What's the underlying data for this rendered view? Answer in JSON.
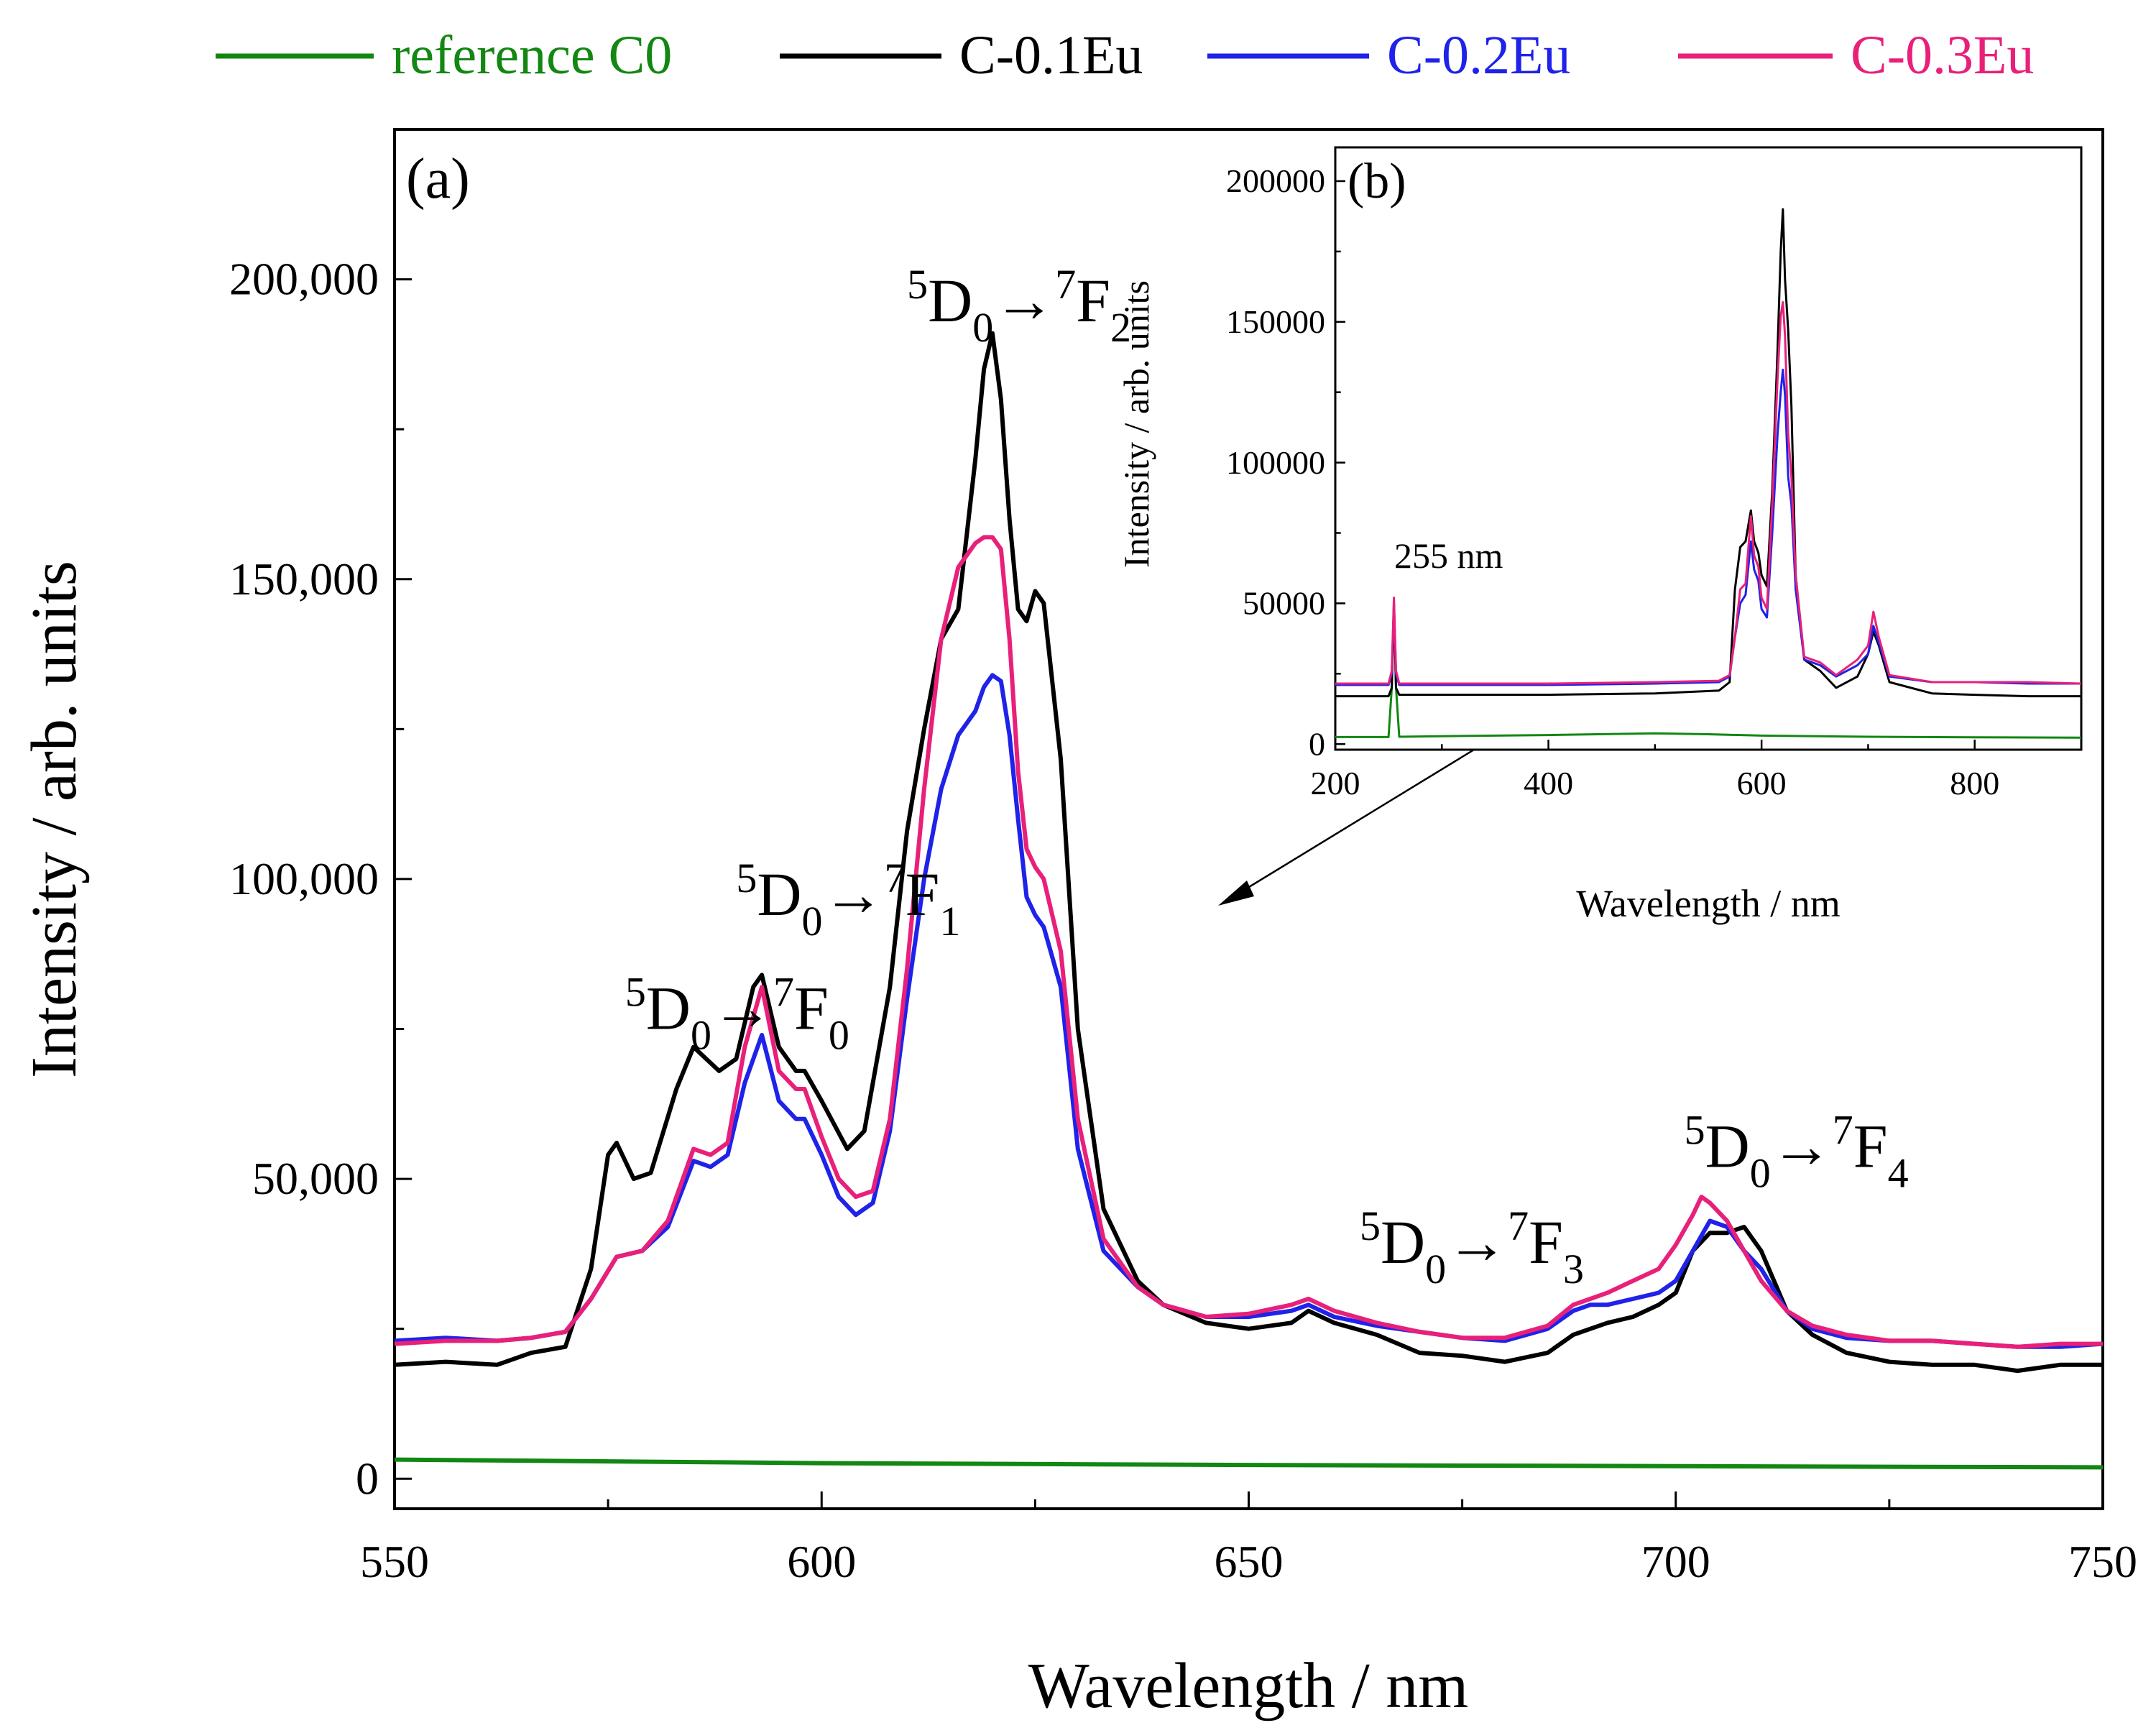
{
  "chart_data": [
    {
      "panel": "main",
      "panel_label": "(a)",
      "type": "line",
      "xlabel": "Wavelength / nm",
      "ylabel": "Intensity / arb. units",
      "xlim": [
        550,
        750
      ],
      "ylim": [
        -5000,
        225000
      ],
      "xticks": [
        550,
        600,
        650,
        700,
        750
      ],
      "yticks": [
        0,
        50000,
        100000,
        150000,
        200000
      ],
      "ytick_labels": [
        "0",
        "50,000",
        "100,000",
        "150,000",
        "200,000"
      ],
      "annotations": [
        {
          "text": "5D0→7F0",
          "sup1": "5",
          "main1": "D",
          "sub1": "0",
          "arrow": "→",
          "sup2": "7",
          "main2": "F",
          "sub2": "0",
          "x": 577,
          "y": 75000
        },
        {
          "text": "5D0→7F1",
          "sup1": "5",
          "main1": "D",
          "sub1": "0",
          "arrow": "→",
          "sup2": "7",
          "main2": "F",
          "sub2": "1",
          "x": 590,
          "y": 94000
        },
        {
          "text": "5D0→7F2",
          "sup1": "5",
          "main1": "D",
          "sub1": "0",
          "arrow": "→",
          "sup2": "7",
          "main2": "F",
          "sub2": "2",
          "x": 610,
          "y": 193000
        },
        {
          "text": "5D0→7F3",
          "sup1": "5",
          "main1": "D",
          "sub1": "0",
          "arrow": "→",
          "sup2": "7",
          "main2": "F",
          "sub2": "3",
          "x": 663,
          "y": 36000
        },
        {
          "text": "5D0→7F4",
          "sup1": "5",
          "main1": "D",
          "sub1": "0",
          "arrow": "→",
          "sup2": "7",
          "main2": "F",
          "sub2": "4",
          "x": 701,
          "y": 52000
        }
      ],
      "series": [
        {
          "name": "reference C0",
          "color": "#128712",
          "x": [
            550,
            600,
            650,
            700,
            750
          ],
          "y": [
            3200,
            2600,
            2300,
            2100,
            1900
          ]
        },
        {
          "name": "C-0.1Eu",
          "color": "#000000",
          "x": [
            550,
            556,
            562,
            566,
            570,
            573,
            575,
            576,
            578,
            580,
            583,
            585,
            588,
            590,
            592,
            593,
            595,
            597,
            598,
            600,
            603,
            605,
            608,
            610,
            612,
            614,
            616,
            618,
            619,
            620,
            621,
            622,
            623,
            624,
            625,
            626,
            628,
            630,
            633,
            637,
            640,
            645,
            650,
            655,
            657,
            660,
            665,
            670,
            675,
            680,
            685,
            688,
            690,
            692,
            695,
            698,
            700,
            702,
            704,
            706,
            708,
            710,
            713,
            716,
            720,
            725,
            730,
            735,
            740,
            745,
            750
          ],
          "y": [
            19000,
            19500,
            19000,
            21000,
            22000,
            35000,
            54000,
            56000,
            50000,
            51000,
            65000,
            72000,
            68000,
            70000,
            82000,
            84000,
            72000,
            68000,
            68000,
            63000,
            55000,
            58000,
            82000,
            108000,
            125000,
            140000,
            145000,
            170000,
            185000,
            191000,
            180000,
            160000,
            145000,
            143000,
            148000,
            146000,
            120000,
            75000,
            45000,
            33000,
            29000,
            26000,
            25000,
            26000,
            28000,
            26000,
            24000,
            21000,
            20500,
            19500,
            21000,
            24000,
            25000,
            26000,
            27000,
            29000,
            31000,
            38000,
            41000,
            41000,
            42000,
            38000,
            28000,
            24000,
            21000,
            19500,
            19000,
            19000,
            18000,
            19000,
            19000
          ]
        },
        {
          "name": "C-0.2Eu",
          "color": "#1f22e8",
          "x": [
            550,
            556,
            562,
            566,
            570,
            573,
            576,
            579,
            582,
            585,
            587,
            589,
            591,
            593,
            595,
            597,
            598,
            600,
            602,
            604,
            606,
            608,
            610,
            612,
            614,
            616,
            618,
            619,
            620,
            621,
            622,
            623,
            624,
            625,
            626,
            628,
            630,
            633,
            637,
            640,
            645,
            650,
            655,
            657,
            660,
            665,
            670,
            675,
            680,
            685,
            688,
            690,
            692,
            695,
            698,
            700,
            702,
            704,
            706,
            708,
            710,
            713,
            716,
            720,
            725,
            730,
            735,
            740,
            745,
            750
          ],
          "y": [
            23000,
            23500,
            23000,
            23500,
            24500,
            30000,
            37000,
            38000,
            42000,
            53000,
            52000,
            54000,
            66000,
            74000,
            63000,
            60000,
            60000,
            54000,
            47000,
            44000,
            46000,
            58000,
            80000,
            100000,
            115000,
            124000,
            128000,
            132000,
            134000,
            133000,
            124000,
            110000,
            97000,
            94000,
            92000,
            82000,
            55000,
            38000,
            32000,
            29000,
            27000,
            27000,
            28000,
            29000,
            27000,
            25500,
            24500,
            23500,
            23000,
            25000,
            28000,
            29000,
            29000,
            30000,
            31000,
            33000,
            38000,
            43000,
            42000,
            38000,
            35000,
            28000,
            25000,
            23500,
            23000,
            23000,
            22500,
            22000,
            22000,
            22500
          ]
        },
        {
          "name": "C-0.3Eu",
          "color": "#e8207a",
          "x": [
            550,
            556,
            562,
            566,
            570,
            573,
            576,
            579,
            582,
            585,
            587,
            589,
            591,
            593,
            595,
            597,
            598,
            600,
            602,
            604,
            606,
            608,
            610,
            612,
            614,
            616,
            618,
            619,
            620,
            621,
            622,
            623,
            624,
            625,
            626,
            628,
            630,
            633,
            637,
            640,
            645,
            650,
            655,
            657,
            660,
            665,
            670,
            675,
            680,
            685,
            688,
            690,
            692,
            695,
            698,
            700,
            702,
            703,
            704,
            706,
            708,
            710,
            713,
            716,
            720,
            725,
            730,
            735,
            740,
            745,
            750
          ],
          "y": [
            22500,
            23000,
            23000,
            23500,
            24500,
            30000,
            37000,
            38000,
            43000,
            55000,
            54000,
            56000,
            72000,
            82000,
            68000,
            65000,
            65000,
            57000,
            50000,
            47000,
            48000,
            60000,
            85000,
            115000,
            140000,
            152000,
            156000,
            157000,
            157000,
            155000,
            140000,
            118000,
            105000,
            102000,
            100000,
            88000,
            60000,
            40000,
            32000,
            29000,
            27000,
            27500,
            29000,
            30000,
            28000,
            26000,
            24500,
            23500,
            23500,
            25500,
            29000,
            30000,
            31000,
            33000,
            35000,
            39000,
            44000,
            47000,
            46000,
            43000,
            38000,
            33000,
            28000,
            25500,
            24000,
            23000,
            23000,
            22500,
            22000,
            22500,
            22500
          ]
        }
      ]
    },
    {
      "panel": "inset",
      "panel_label": "(b)",
      "type": "line",
      "xlabel": "Wavelength / nm",
      "ylabel": "Intensity / arb. units",
      "xlim": [
        200,
        900
      ],
      "ylim": [
        -2000,
        212000
      ],
      "xticks": [
        200,
        400,
        600,
        800
      ],
      "yticks": [
        0,
        50000,
        100000,
        150000,
        200000
      ],
      "ytick_labels": [
        "0",
        "50000",
        "100000",
        "150000",
        "200000"
      ],
      "annotation": "255 nm",
      "series": [
        {
          "name": "reference C0",
          "color": "#128712",
          "x": [
            200,
            250,
            253,
            255,
            257,
            260,
            300,
            400,
            500,
            550,
            600,
            700,
            800,
            900
          ],
          "y": [
            2500,
            2500,
            20000,
            50000,
            20000,
            2600,
            2800,
            3200,
            3800,
            3500,
            3000,
            2600,
            2400,
            2300
          ]
        },
        {
          "name": "C-0.1Eu",
          "color": "#000000",
          "x": [
            200,
            250,
            253,
            255,
            257,
            260,
            300,
            400,
            500,
            560,
            570,
            575,
            580,
            585,
            590,
            593,
            597,
            600,
            605,
            610,
            615,
            618,
            620,
            622,
            625,
            628,
            632,
            640,
            655,
            670,
            690,
            700,
            705,
            710,
            720,
            760,
            800,
            850,
            900
          ],
          "y": [
            17000,
            17000,
            20000,
            50000,
            20000,
            17500,
            17500,
            17500,
            18000,
            19000,
            22000,
            55000,
            70000,
            72000,
            83000,
            72000,
            68000,
            60000,
            56000,
            90000,
            140000,
            175000,
            190000,
            165000,
            147000,
            120000,
            60000,
            30000,
            26000,
            20000,
            24000,
            32000,
            40000,
            35000,
            22000,
            18000,
            17500,
            17000,
            17000
          ]
        },
        {
          "name": "C-0.2Eu",
          "color": "#1f22e8",
          "x": [
            200,
            250,
            253,
            255,
            257,
            260,
            300,
            400,
            500,
            560,
            570,
            575,
            580,
            585,
            590,
            593,
            597,
            600,
            605,
            610,
            615,
            618,
            620,
            622,
            625,
            628,
            632,
            640,
            655,
            670,
            690,
            700,
            705,
            710,
            720,
            760,
            800,
            850,
            900
          ],
          "y": [
            21000,
            21000,
            25000,
            50000,
            25000,
            21000,
            21000,
            21000,
            21500,
            22000,
            24000,
            38000,
            50000,
            53000,
            72000,
            62000,
            58000,
            48000,
            45000,
            75000,
            110000,
            125000,
            133000,
            124000,
            95000,
            85000,
            55000,
            30000,
            28000,
            24000,
            28000,
            32000,
            42000,
            36000,
            24000,
            22000,
            22000,
            21500,
            21500
          ]
        },
        {
          "name": "C-0.3Eu",
          "color": "#e8207a",
          "x": [
            200,
            250,
            253,
            255,
            257,
            260,
            300,
            400,
            500,
            560,
            570,
            575,
            580,
            585,
            590,
            593,
            597,
            600,
            605,
            610,
            615,
            618,
            620,
            622,
            625,
            628,
            632,
            640,
            655,
            670,
            690,
            700,
            705,
            710,
            720,
            760,
            800,
            850,
            900
          ],
          "y": [
            21500,
            21500,
            26000,
            52000,
            26000,
            21500,
            21500,
            21500,
            22000,
            22500,
            24500,
            38000,
            55000,
            57000,
            81000,
            67000,
            63000,
            52000,
            48000,
            85000,
            130000,
            152000,
            157000,
            145000,
            110000,
            95000,
            60000,
            31000,
            29000,
            24500,
            30000,
            35000,
            47000,
            38000,
            24500,
            22000,
            22000,
            22000,
            21500
          ]
        }
      ]
    }
  ]
}
